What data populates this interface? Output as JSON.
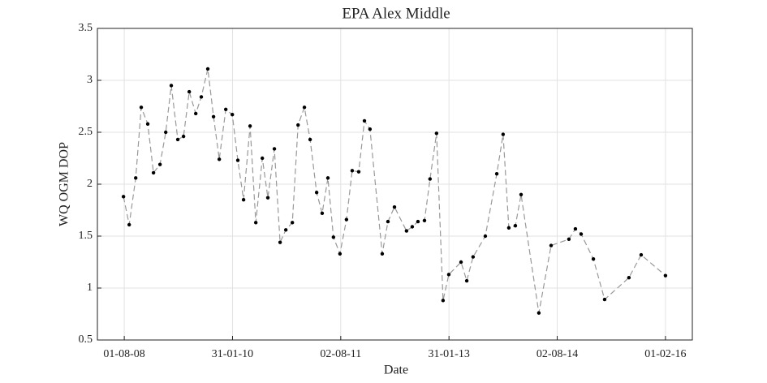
{
  "chart_data": {
    "type": "line",
    "title": "EPA Alex Middle",
    "x_label": "Date",
    "y_label": "WQ OGM DOP",
    "x": [
      "2008-07-28",
      "2008-08-26",
      "2008-09-28",
      "2008-10-26",
      "2008-11-28",
      "2008-12-27",
      "2009-01-29",
      "2009-02-27",
      "2009-03-27",
      "2009-04-29",
      "2009-05-28",
      "2009-06-26",
      "2009-07-29",
      "2009-08-26",
      "2009-09-28",
      "2009-10-27",
      "2009-11-25",
      "2009-12-28",
      "2010-01-30",
      "2010-02-27",
      "2010-03-28",
      "2010-04-30",
      "2010-05-29",
      "2010-07-01",
      "2010-07-29",
      "2010-08-31",
      "2010-09-29",
      "2010-10-28",
      "2010-11-30",
      "2010-12-29",
      "2011-01-30",
      "2011-02-28",
      "2011-04-02",
      "2011-04-30",
      "2011-05-29",
      "2011-06-26",
      "2011-07-29",
      "2011-08-31",
      "2011-09-29",
      "2011-11-01",
      "2011-11-30",
      "2011-12-28",
      "2012-02-28",
      "2012-03-28",
      "2012-04-30",
      "2012-06-30",
      "2012-07-29",
      "2012-08-27",
      "2012-09-29",
      "2012-10-27",
      "2012-11-29",
      "2013-01-01",
      "2013-01-30",
      "2013-04-02",
      "2013-05-01",
      "2013-06-02",
      "2013-08-03",
      "2013-09-30",
      "2013-11-01",
      "2013-11-30",
      "2014-01-02",
      "2014-01-31",
      "2014-05-01",
      "2014-07-02",
      "2014-09-30",
      "2014-11-02",
      "2014-12-01",
      "2015-02-01",
      "2015-03-30",
      "2015-07-31",
      "2015-10-01",
      "2016-02-01"
    ],
    "series": [
      {
        "color": "#999999",
        "marker_color": "#000000",
        "values": [
          1.88,
          1.61,
          2.06,
          2.74,
          2.58,
          2.11,
          2.19,
          2.5,
          2.95,
          2.43,
          2.46,
          2.89,
          2.68,
          2.84,
          3.11,
          2.65,
          2.24,
          2.72,
          2.67,
          2.23,
          1.85,
          2.56,
          1.63,
          2.25,
          1.87,
          2.34,
          1.44,
          1.56,
          1.63,
          2.57,
          2.74,
          2.43,
          1.92,
          1.72,
          2.06,
          1.49,
          1.33,
          1.66,
          2.13,
          2.12,
          2.61,
          2.53,
          1.33,
          1.64,
          1.78,
          1.55,
          1.59,
          1.64,
          1.65,
          2.05,
          2.49,
          0.88,
          1.13,
          1.25,
          1.07,
          1.3,
          1.5,
          2.1,
          2.48,
          1.58,
          1.6,
          1.9,
          0.76,
          1.41,
          1.47,
          1.57,
          1.52,
          1.28,
          0.89,
          1.1,
          1.32,
          1.12
        ]
      }
    ],
    "xlim": [
      "2008-03-18",
      "2016-06-16"
    ],
    "xticks": [
      {
        "value": "2008-08-01",
        "label": "01-08-08"
      },
      {
        "value": "2010-01-31",
        "label": "31-01-10"
      },
      {
        "value": "2011-08-02",
        "label": "02-08-11"
      },
      {
        "value": "2013-01-31",
        "label": "31-01-13"
      },
      {
        "value": "2014-08-02",
        "label": "02-08-14"
      },
      {
        "value": "2016-02-01",
        "label": "01-02-16"
      }
    ],
    "ylim": [
      0.5,
      3.5
    ],
    "yticks": [
      0.5,
      1,
      1.5,
      2,
      2.5,
      3,
      3.5
    ],
    "grid": true
  }
}
